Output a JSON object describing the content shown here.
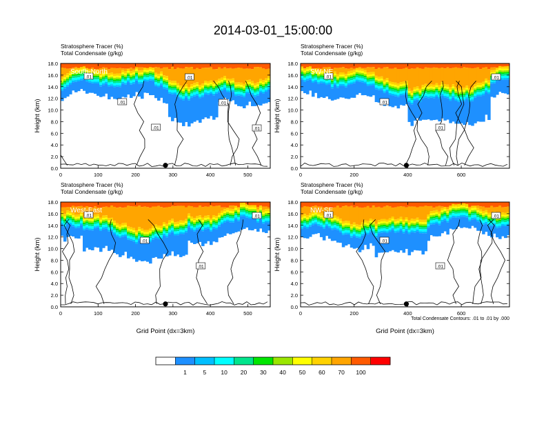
{
  "title": "2014-03-01_15:00:00",
  "shared": {
    "ylabel": "Height (km)",
    "xlabel": "Grid Point (dx=3km)",
    "header_line1": "Stratosphere Tracer   (%)",
    "header_line2": "Total Condensate   (g/kg)",
    "contour_note": "Total Condensate Contours: .01 to .01 by .000"
  },
  "colorbar": {
    "levels": [
      0,
      1,
      5,
      10,
      20,
      30,
      40,
      50,
      60,
      70,
      100
    ],
    "labels": [
      "1",
      "5",
      "10",
      "20",
      "30",
      "40",
      "50",
      "60",
      "70",
      "100"
    ],
    "colors": [
      "#ffffff",
      "#1e90ff",
      "#00bfff",
      "#00ffff",
      "#00e58c",
      "#00e600",
      "#9be600",
      "#ffff00",
      "#ffd200",
      "#ffa500",
      "#ff5a00",
      "#ff0000"
    ]
  },
  "chart_data": [
    {
      "type": "heatmap",
      "panel": "South-North",
      "ylim": [
        0,
        18
      ],
      "xlim": [
        0,
        560
      ],
      "xticks": [
        "0",
        "100",
        "200",
        "300",
        "400",
        "500"
      ],
      "yticks": [
        "0.0",
        "2.0",
        "4.0",
        "6.0",
        "8.0",
        "10.0",
        "12.0",
        "14.0",
        "16.0",
        "18.0"
      ],
      "contour_labels": [
        ".01",
        ".01",
        ".01",
        ".01",
        ".01",
        ".01"
      ],
      "marker_x": 280
    },
    {
      "type": "heatmap",
      "panel": "SW-NE",
      "ylim": [
        0,
        18
      ],
      "xlim": [
        0,
        780
      ],
      "xticks": [
        "0",
        "200",
        "400",
        "600"
      ],
      "yticks": [
        "0.0",
        "2.0",
        "4.0",
        "6.0",
        "8.0",
        "10.0",
        "12.0",
        "14.0",
        "16.0",
        "18.0"
      ],
      "contour_labels": [
        ".01",
        ".01",
        ".01",
        ".01"
      ],
      "marker_x": 395
    },
    {
      "type": "heatmap",
      "panel": "West-East",
      "ylim": [
        0,
        18
      ],
      "xlim": [
        0,
        560
      ],
      "xticks": [
        "0",
        "100",
        "200",
        "300",
        "400",
        "500"
      ],
      "yticks": [
        "0.0",
        "2.0",
        "4.0",
        "6.0",
        "8.0",
        "10.0",
        "12.0",
        "14.0",
        "16.0",
        "18.0"
      ],
      "contour_labels": [
        ".01",
        ".01",
        ".01",
        ".01"
      ],
      "marker_x": 280
    },
    {
      "type": "heatmap",
      "panel": "NW-SE",
      "ylim": [
        0,
        18
      ],
      "xlim": [
        0,
        780
      ],
      "xticks": [
        "0",
        "200",
        "400",
        "600"
      ],
      "yticks": [
        "0.0",
        "2.0",
        "4.0",
        "6.0",
        "8.0",
        "10.0",
        "12.0",
        "14.0",
        "16.0",
        "18.0"
      ],
      "contour_labels": [
        ".01",
        ".01",
        ".01",
        ".01"
      ],
      "marker_x": 395
    }
  ]
}
